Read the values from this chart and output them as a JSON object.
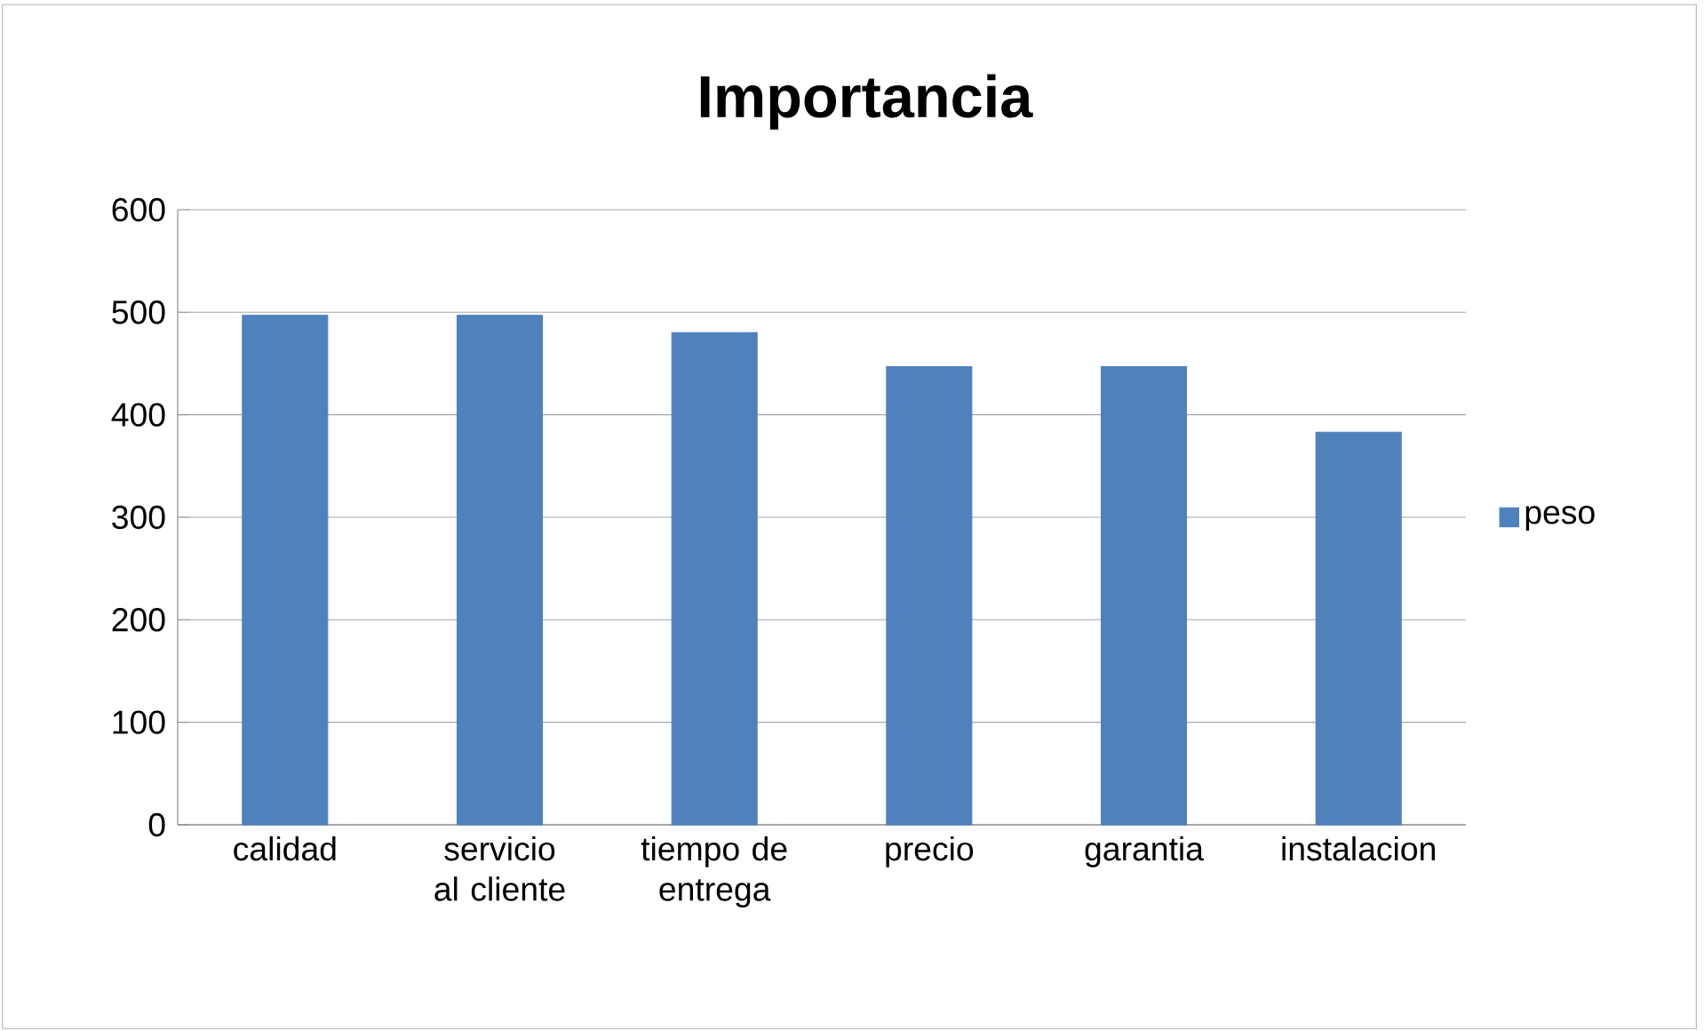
{
  "chart_data": {
    "type": "bar",
    "title": "Importancia",
    "categories": [
      "calidad",
      "servicio al cliente",
      "tiempo de entrega",
      "precio",
      "garantia",
      "instalacion"
    ],
    "series": [
      {
        "name": "peso",
        "color": "#4f81bd",
        "values": [
          497,
          497,
          480,
          447,
          447,
          383
        ]
      }
    ],
    "ylim": [
      0,
      600
    ],
    "yticks": [
      0,
      100,
      200,
      300,
      400,
      500,
      600
    ],
    "grid": "y",
    "legend": "right"
  }
}
